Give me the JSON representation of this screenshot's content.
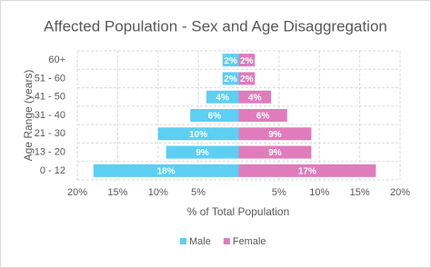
{
  "chart_data": {
    "type": "pyramid",
    "title": "Affected Population - Sex and Age Disaggregation",
    "x_label": "% of Total Population",
    "y_label": "Age Range (years)",
    "categories": [
      "60+",
      "51 - 60",
      "41 - 50",
      "31 - 40",
      "21 - 30",
      "13 - 20",
      "0 - 12"
    ],
    "series": [
      {
        "name": "Male",
        "color": "#5ccff3",
        "values": [
          2,
          2,
          4,
          6,
          10,
          9,
          18
        ],
        "value_labels": [
          "2%",
          "2%",
          "4%",
          "6%",
          "10%",
          "9%",
          "18%"
        ]
      },
      {
        "name": "Female",
        "color": "#e07cbc",
        "values": [
          2,
          2,
          4,
          6,
          9,
          9,
          17
        ],
        "value_labels": [
          "2%",
          "2%",
          "4%",
          "6%",
          "9%",
          "9%",
          "17%"
        ]
      }
    ],
    "xlim": [
      -20,
      20
    ],
    "xticks": [
      {
        "value": -20,
        "label": "20%"
      },
      {
        "value": -15,
        "label": "15%"
      },
      {
        "value": -10,
        "label": "10%"
      },
      {
        "value": -5,
        "label": "5%"
      },
      {
        "value": 5,
        "label": "5%"
      },
      {
        "value": 10,
        "label": "10%"
      },
      {
        "value": 15,
        "label": "15%"
      },
      {
        "value": 20,
        "label": "20%"
      }
    ],
    "grid": true
  }
}
